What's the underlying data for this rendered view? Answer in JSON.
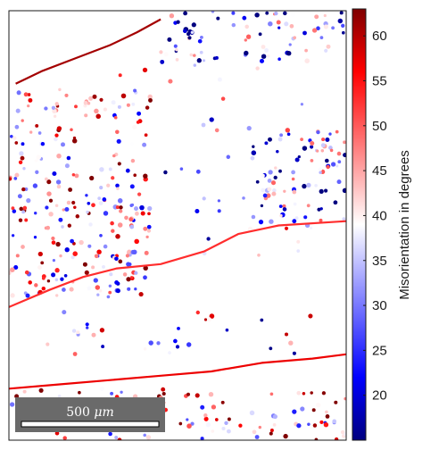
{
  "chart_data": {
    "type": "scatter",
    "title": "",
    "xlabel": "",
    "ylabel": "",
    "grid": false,
    "colormap": {
      "name": "blue-white-red",
      "stops": [
        {
          "value": 15,
          "color": "#00007f"
        },
        {
          "value": 22,
          "color": "#0000ff"
        },
        {
          "value": 39,
          "color": "#ffffff"
        },
        {
          "value": 56,
          "color": "#ff0000"
        },
        {
          "value": 63,
          "color": "#7f0000"
        }
      ]
    },
    "colorbar": {
      "label": "Misorientation in degrees",
      "range": [
        15,
        63
      ],
      "ticks": [
        20,
        25,
        30,
        35,
        40,
        45,
        50,
        55,
        60
      ],
      "tick_labels": [
        "20",
        "25",
        "30",
        "35",
        "40",
        "45",
        "50",
        "55",
        "60"
      ]
    },
    "scalebar": {
      "label_value": "500",
      "label_unit": "μm"
    },
    "boundaries": [
      {
        "name": "upper-grain-boundary",
        "mean_misorientation": 61,
        "points": [
          [
            0.02,
            0.83
          ],
          [
            0.1,
            0.86
          ],
          [
            0.2,
            0.89
          ],
          [
            0.3,
            0.92
          ],
          [
            0.38,
            0.95
          ],
          [
            0.45,
            0.98
          ]
        ]
      },
      {
        "name": "middle-grain-boundary",
        "mean_misorientation": 53,
        "points": [
          [
            0.0,
            0.31
          ],
          [
            0.12,
            0.35
          ],
          [
            0.22,
            0.38
          ],
          [
            0.32,
            0.4
          ],
          [
            0.45,
            0.41
          ],
          [
            0.58,
            0.44
          ],
          [
            0.68,
            0.48
          ],
          [
            0.8,
            0.5
          ],
          [
            1.0,
            0.51
          ]
        ]
      },
      {
        "name": "lower-grain-boundary",
        "mean_misorientation": 57,
        "points": [
          [
            0.0,
            0.12
          ],
          [
            0.15,
            0.13
          ],
          [
            0.3,
            0.14
          ],
          [
            0.45,
            0.15
          ],
          [
            0.6,
            0.16
          ],
          [
            0.75,
            0.18
          ],
          [
            0.9,
            0.19
          ],
          [
            1.0,
            0.2
          ]
        ]
      }
    ],
    "point_regions": [
      {
        "name": "upper-left-band",
        "bounds": [
          0.0,
          0.33,
          0.42,
          0.82
        ],
        "count": 260,
        "mean_misorientation": 43
      },
      {
        "name": "top-right-cluster",
        "bounds": [
          0.45,
          0.88,
          1.0,
          1.0
        ],
        "count": 80,
        "mean_misorientation": 28
      },
      {
        "name": "right-band",
        "bounds": [
          0.72,
          0.5,
          1.0,
          0.72
        ],
        "count": 90,
        "mean_misorientation": 28
      },
      {
        "name": "sparse-middle",
        "bounds": [
          0.3,
          0.42,
          0.95,
          0.88
        ],
        "count": 45,
        "mean_misorientation": 36
      },
      {
        "name": "lower-middle",
        "bounds": [
          0.1,
          0.2,
          0.9,
          0.3
        ],
        "count": 30,
        "mean_misorientation": 38
      },
      {
        "name": "bottom-strip",
        "bounds": [
          0.0,
          0.0,
          1.0,
          0.12
        ],
        "count": 110,
        "mean_misorientation": 45
      }
    ]
  }
}
